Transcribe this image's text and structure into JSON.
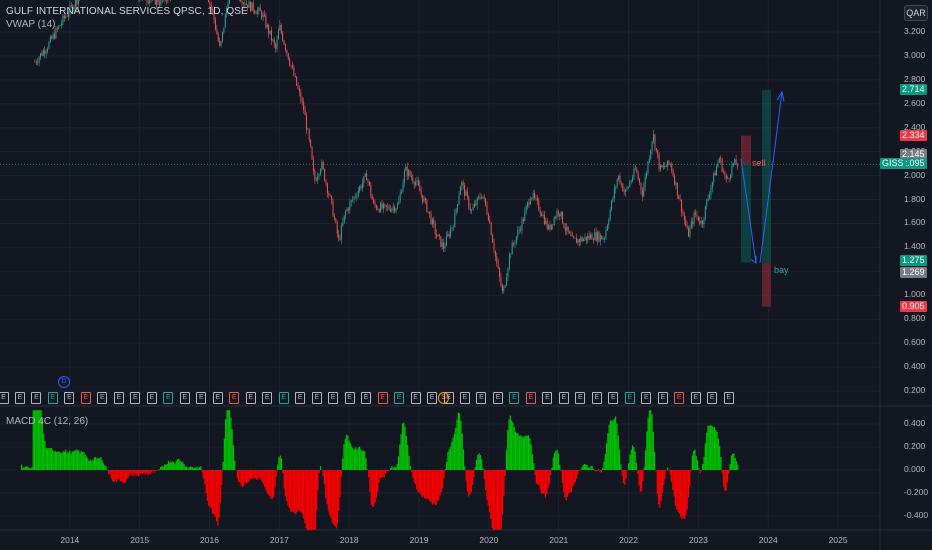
{
  "header": {
    "symbol_title": "GULF INTERNATIONAL SERVICES QPSC, 1D, QSE",
    "indicator": "VWAP (14)",
    "currency": "QAR",
    "macd_label": "MACD 4C (12, 26)"
  },
  "colors": {
    "background": "#131722",
    "up": "#26a69a",
    "down": "#ef5350",
    "macd_up": "#00c400",
    "macd_down": "#ff0000",
    "arrow": "#2962ff",
    "price_line": "#2a9d8f"
  },
  "chart_data": {
    "type": "candlestick",
    "y_ticks": [
      "3.200",
      "3.000",
      "2.800",
      "2.600",
      "2.400",
      "2.200",
      "2.000",
      "1.800",
      "1.600",
      "1.400",
      "1.200",
      "1.000",
      "0.800",
      "0.600",
      "0.400",
      "0.200"
    ],
    "x_ticks": [
      "2014",
      "2015",
      "2016",
      "2017",
      "2018",
      "2019",
      "2020",
      "2021",
      "2022",
      "2023",
      "2024",
      "2025"
    ],
    "price_path": [
      [
        2013.5,
        2.95
      ],
      [
        2013.7,
        3.1
      ],
      [
        2013.9,
        3.3
      ],
      [
        2014.2,
        3.55
      ],
      [
        2014.5,
        3.7
      ],
      [
        2014.8,
        3.55
      ],
      [
        2015.0,
        3.5
      ],
      [
        2015.3,
        3.45
      ],
      [
        2015.6,
        3.6
      ],
      [
        2015.9,
        3.65
      ],
      [
        2016.05,
        3.35
      ],
      [
        2016.15,
        3.05
      ],
      [
        2016.3,
        3.6
      ],
      [
        2016.5,
        3.45
      ],
      [
        2016.75,
        3.35
      ],
      [
        2016.95,
        3.05
      ],
      [
        2017.0,
        3.25
      ],
      [
        2017.1,
        3.05
      ],
      [
        2017.2,
        2.85
      ],
      [
        2017.35,
        2.55
      ],
      [
        2017.45,
        2.2
      ],
      [
        2017.5,
        1.95
      ],
      [
        2017.6,
        2.1
      ],
      [
        2017.75,
        1.75
      ],
      [
        2017.85,
        1.45
      ],
      [
        2017.95,
        1.7
      ],
      [
        2018.1,
        1.85
      ],
      [
        2018.25,
        2.0
      ],
      [
        2018.35,
        1.75
      ],
      [
        2018.5,
        1.72
      ],
      [
        2018.7,
        1.75
      ],
      [
        2018.8,
        2.05
      ],
      [
        2018.95,
        1.95
      ],
      [
        2019.1,
        1.75
      ],
      [
        2019.25,
        1.5
      ],
      [
        2019.35,
        1.4
      ],
      [
        2019.5,
        1.62
      ],
      [
        2019.6,
        1.95
      ],
      [
        2019.75,
        1.7
      ],
      [
        2019.9,
        1.85
      ],
      [
        2020.0,
        1.65
      ],
      [
        2020.1,
        1.3
      ],
      [
        2020.2,
        1.0
      ],
      [
        2020.3,
        1.35
      ],
      [
        2020.5,
        1.65
      ],
      [
        2020.6,
        1.85
      ],
      [
        2020.75,
        1.7
      ],
      [
        2020.85,
        1.55
      ],
      [
        2021.0,
        1.72
      ],
      [
        2021.1,
        1.55
      ],
      [
        2021.2,
        1.45
      ],
      [
        2021.35,
        1.47
      ],
      [
        2021.5,
        1.5
      ],
      [
        2021.65,
        1.48
      ],
      [
        2021.75,
        1.75
      ],
      [
        2021.85,
        2.0
      ],
      [
        2021.95,
        1.85
      ],
      [
        2022.1,
        2.05
      ],
      [
        2022.2,
        1.85
      ],
      [
        2022.35,
        2.35
      ],
      [
        2022.45,
        2.05
      ],
      [
        2022.6,
        2.1
      ],
      [
        2022.75,
        1.75
      ],
      [
        2022.85,
        1.5
      ],
      [
        2022.95,
        1.68
      ],
      [
        2023.05,
        1.6
      ],
      [
        2023.15,
        1.85
      ],
      [
        2023.3,
        2.15
      ],
      [
        2023.4,
        1.95
      ],
      [
        2023.5,
        2.1
      ],
      [
        2023.58,
        2.09
      ]
    ],
    "last_price": "2.095",
    "price_tags": [
      {
        "value": "2.714",
        "price": 2.714,
        "color": "#089981"
      },
      {
        "value": "2.334",
        "price": 2.334,
        "color": "#f23645"
      },
      {
        "value": "2.145",
        "price": 2.175,
        "color": "#787b86"
      },
      {
        "value": "2.095",
        "price": 2.095,
        "color": "#089981"
      },
      {
        "value": "1.275",
        "price": 1.285,
        "color": "#089981"
      },
      {
        "value": "1.269",
        "price": 1.19,
        "color": "#787b86"
      },
      {
        "value": "0.905",
        "price": 0.905,
        "color": "#f23645"
      }
    ],
    "annotations": [
      {
        "text": "sell",
        "x": 2023.75,
        "price": 2.1
      },
      {
        "text": "bay",
        "x": 2024.1,
        "price": 1.2
      }
    ],
    "macd_ticks": [
      "0.400",
      "0.200",
      "0.000",
      "-0.200",
      "-0.400"
    ]
  },
  "events": {
    "labels": [
      "E",
      "E",
      "E",
      "E",
      "E",
      "E",
      "E",
      "E",
      "E",
      "E",
      "E",
      "E",
      "E",
      "E",
      "E",
      "E",
      "E",
      "E",
      "E",
      "E",
      "E",
      "E",
      "E",
      "E",
      "E",
      "E",
      "E",
      "E",
      "E",
      "E",
      "E",
      "E",
      "E",
      "E",
      "E",
      "E",
      "E",
      "E",
      "E",
      "E",
      "E",
      "E",
      "E",
      "E",
      "E"
    ],
    "dividend_marker": "D",
    "special_marker": "S"
  }
}
